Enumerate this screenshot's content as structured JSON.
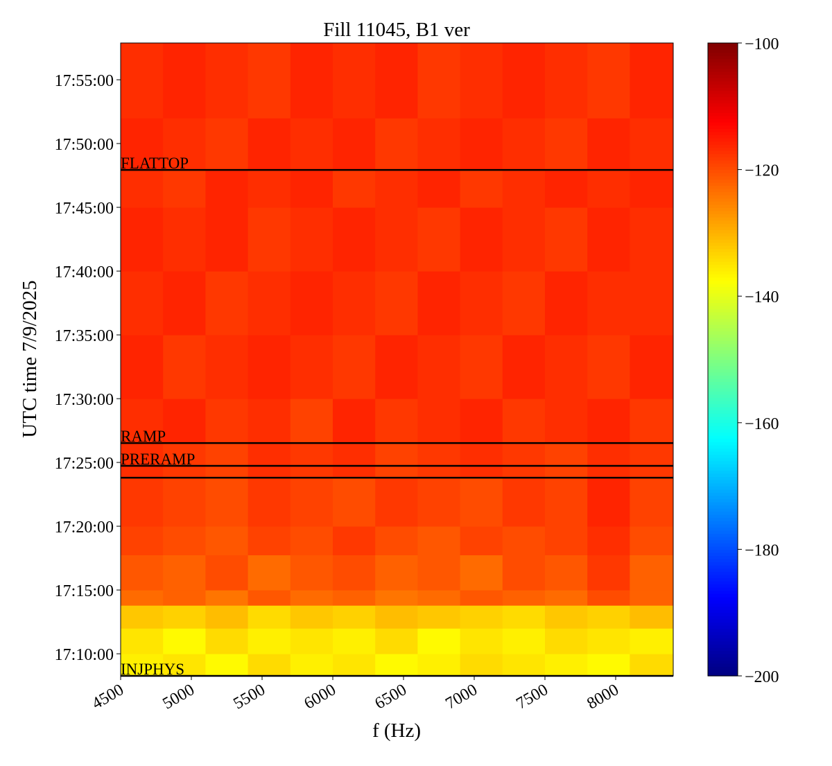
{
  "chart_data": {
    "type": "heatmap",
    "title": "Fill 11045, B1 ver",
    "x_label": "f (Hz)",
    "y_label": "UTC time 7/9/2025",
    "colormap": "jet",
    "xlim": [
      4500,
      8407
    ],
    "xticks": [
      4500,
      5000,
      5500,
      6000,
      6500,
      7000,
      7500,
      8000
    ],
    "ylim": [
      "17:08:16",
      "17:57:53"
    ],
    "yticks": [
      "17:10:00",
      "17:15:00",
      "17:20:00",
      "17:25:00",
      "17:30:00",
      "17:35:00",
      "17:40:00",
      "17:45:00",
      "17:50:00",
      "17:55:00"
    ],
    "clim": [
      -200,
      -100
    ],
    "cticks": [
      {
        "value": -100,
        "label": "−100"
      },
      {
        "value": -120,
        "label": "−120"
      },
      {
        "value": -140,
        "label": "−140"
      },
      {
        "value": -160,
        "label": "−160"
      },
      {
        "value": -180,
        "label": "−180"
      },
      {
        "value": -200,
        "label": "−200"
      }
    ],
    "x_edges": [
      4500,
      4800,
      5100,
      5400,
      5700,
      6000,
      6300,
      6600,
      6900,
      7200,
      7500,
      7800,
      8100,
      8407
    ],
    "y_edges": [
      "17:08:16",
      "17:10:00",
      "17:12:00",
      "17:13:48",
      "17:15:00",
      "17:17:45",
      "17:20:00",
      "17:23:48",
      "17:26:31",
      "17:30:00",
      "17:35:00",
      "17:40:00",
      "17:45:00",
      "17:47:56",
      "17:52:00",
      "17:57:53"
    ],
    "z": [
      [
        -136,
        -135,
        -137,
        -134,
        -136,
        -135,
        -137,
        -136,
        -134,
        -135,
        -136,
        -137,
        -134
      ],
      [
        -135,
        -137,
        -134,
        -136,
        -135,
        -136,
        -134,
        -137,
        -135,
        -136,
        -134,
        -135,
        -136
      ],
      [
        -132,
        -133,
        -131,
        -134,
        -132,
        -133,
        -131,
        -132,
        -133,
        -134,
        -132,
        -133,
        -131
      ],
      [
        -123,
        -122,
        -124,
        -121,
        -123,
        -122,
        -124,
        -123,
        -121,
        -122,
        -123,
        -120,
        -122
      ],
      [
        -121,
        -122,
        -120,
        -123,
        -121,
        -120,
        -122,
        -121,
        -123,
        -120,
        -121,
        -118,
        -122
      ],
      [
        -119,
        -120,
        -121,
        -119,
        -120,
        -118,
        -120,
        -121,
        -119,
        -120,
        -119,
        -117,
        -120
      ],
      [
        -118,
        -119,
        -120,
        -118,
        -119,
        -120,
        -118,
        -119,
        -120,
        -118,
        -119,
        -116,
        -119
      ],
      [
        -117,
        -118,
        -119,
        -117,
        -118,
        -117,
        -119,
        -118,
        -117,
        -118,
        -119,
        -117,
        -118
      ],
      [
        -117,
        -116,
        -118,
        -117,
        -119,
        -116,
        -118,
        -117,
        -116,
        -118,
        -117,
        -116,
        -118
      ],
      [
        -116,
        -118,
        -117,
        -116,
        -117,
        -118,
        -116,
        -117,
        -118,
        -116,
        -117,
        -118,
        -116
      ],
      [
        -117,
        -116,
        -118,
        -117,
        -116,
        -117,
        -118,
        -116,
        -117,
        -118,
        -116,
        -117,
        -117
      ],
      [
        -116,
        -117,
        -116,
        -118,
        -117,
        -116,
        -117,
        -118,
        -116,
        -117,
        -118,
        -116,
        -117
      ],
      [
        -117,
        -118,
        -116,
        -117,
        -116,
        -118,
        -117,
        -116,
        -118,
        -117,
        -116,
        -117,
        -116
      ],
      [
        -116,
        -117,
        -118,
        -116,
        -117,
        -116,
        -118,
        -117,
        -116,
        -117,
        -118,
        -116,
        -117
      ],
      [
        -117,
        -116,
        -117,
        -118,
        -116,
        -117,
        -116,
        -118,
        -117,
        -116,
        -117,
        -118,
        -116
      ]
    ],
    "event_color": "#000000",
    "events": [
      {
        "label": "FLATTOP",
        "time": "17:47:56"
      },
      {
        "label": "RAMP",
        "time": "17:26:31"
      },
      {
        "label": "PRERAMP",
        "time": "17:24:44"
      },
      {
        "label": null,
        "time": "17:23:48"
      },
      {
        "label": "INJPHYS",
        "time": "17:08:16"
      }
    ]
  }
}
